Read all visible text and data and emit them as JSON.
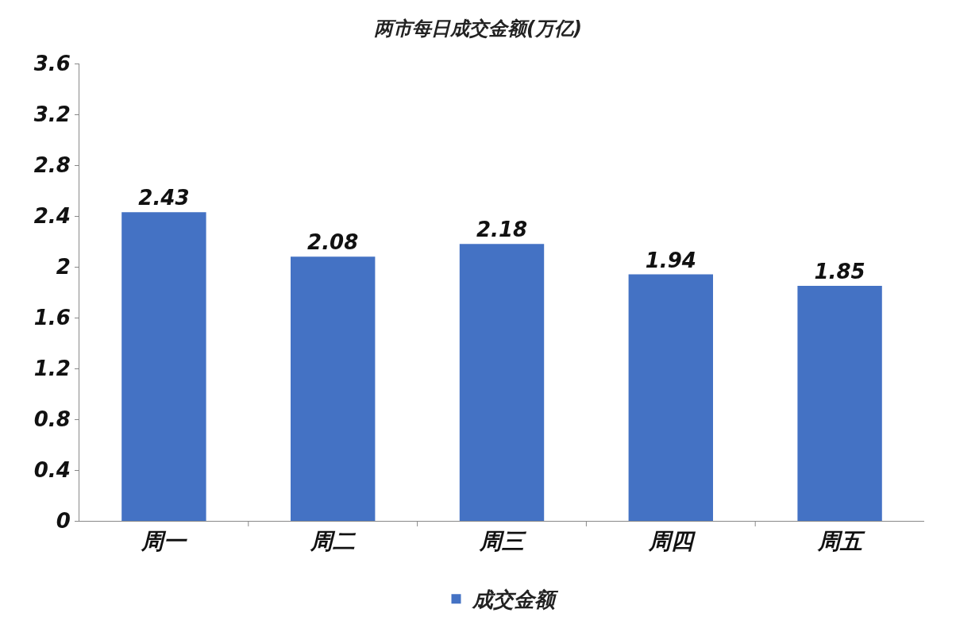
{
  "chart_data": {
    "type": "bar",
    "title": "两市每日成交金额(万亿)",
    "categories": [
      "周一",
      "周二",
      "周三",
      "周四",
      "周五"
    ],
    "series": [
      {
        "name": "成交金额",
        "color": "#4472c4",
        "values": [
          2.43,
          2.08,
          2.18,
          1.94,
          1.85
        ]
      }
    ],
    "ylim": [
      0,
      3.6
    ],
    "yticks": [
      0,
      0.4,
      0.8,
      1.2,
      1.6,
      2,
      2.4,
      2.8,
      3.2,
      3.6
    ],
    "data_labels": true,
    "grid": false,
    "legend": "bottom"
  }
}
